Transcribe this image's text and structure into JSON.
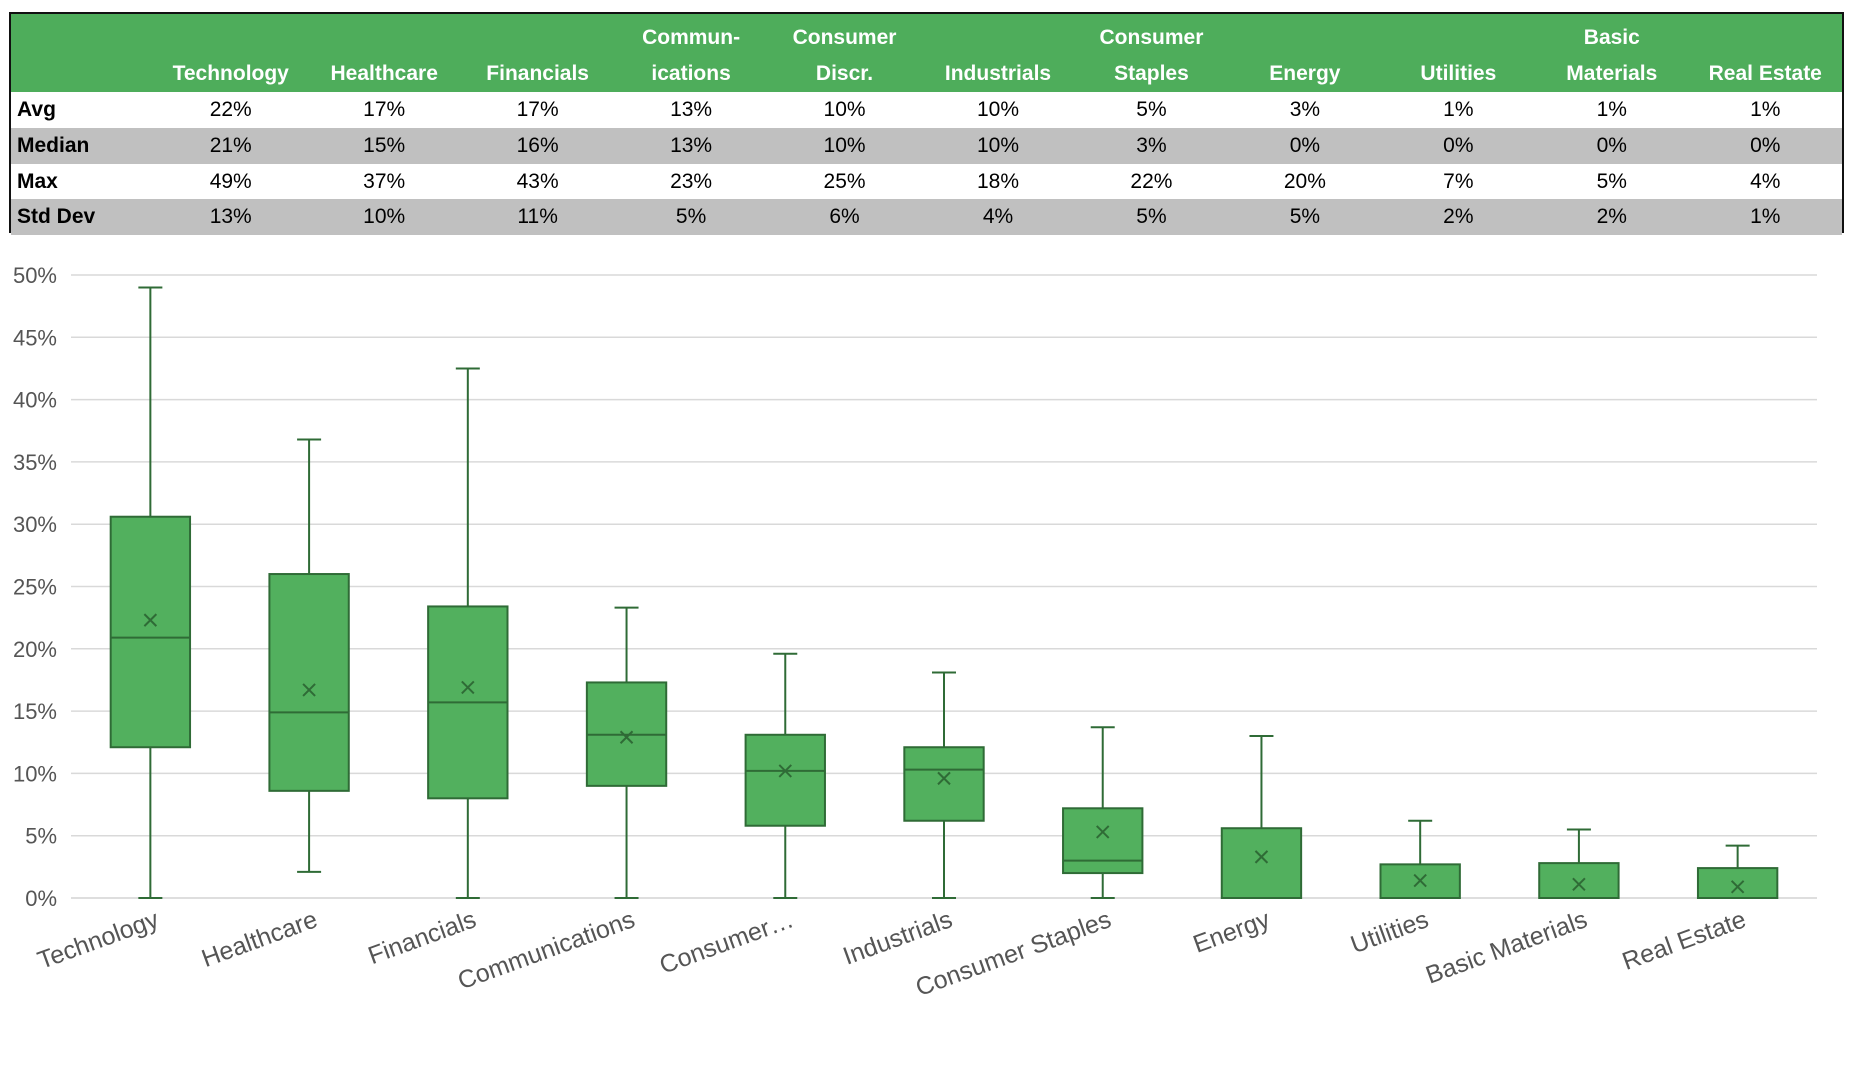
{
  "table": {
    "headers": [
      [
        "Technology"
      ],
      [
        "Healthcare"
      ],
      [
        "Financials"
      ],
      [
        "Commun-",
        "ications"
      ],
      [
        "Consumer",
        "Discr."
      ],
      [
        "Industrials"
      ],
      [
        "Consumer",
        "Staples"
      ],
      [
        "Energy"
      ],
      [
        "Utilities"
      ],
      [
        "Basic",
        "Materials"
      ],
      [
        "Real Estate"
      ]
    ],
    "rows": [
      {
        "label": "Avg",
        "cells": [
          "22%",
          "17%",
          "17%",
          "13%",
          "10%",
          "10%",
          "5%",
          "3%",
          "1%",
          "1%",
          "1%"
        ]
      },
      {
        "label": "Median",
        "cells": [
          "21%",
          "15%",
          "16%",
          "13%",
          "10%",
          "10%",
          "3%",
          "0%",
          "0%",
          "0%",
          "0%"
        ]
      },
      {
        "label": "Max",
        "cells": [
          "49%",
          "37%",
          "43%",
          "23%",
          "25%",
          "18%",
          "22%",
          "20%",
          "7%",
          "5%",
          "4%"
        ]
      },
      {
        "label": "Std Dev",
        "cells": [
          "13%",
          "10%",
          "11%",
          "5%",
          "6%",
          "4%",
          "5%",
          "5%",
          "2%",
          "2%",
          "1%"
        ]
      }
    ]
  },
  "chart_data": {
    "type": "box",
    "categories": [
      "Technology",
      "Healthcare",
      "Financials",
      "Communications",
      "Consumer…",
      "Industrials",
      "Consumer Staples",
      "Energy",
      "Utilities",
      "Basic Materials",
      "Real Estate"
    ],
    "min": [
      0,
      2.1,
      0,
      0,
      0,
      0,
      0,
      0,
      0,
      0,
      0
    ],
    "q1": [
      12.1,
      8.6,
      8.0,
      9.0,
      5.8,
      6.2,
      2.0,
      0,
      0,
      0,
      0
    ],
    "median": [
      20.9,
      14.9,
      15.7,
      13.1,
      10.2,
      10.3,
      3.0,
      0,
      0,
      0,
      0
    ],
    "q3": [
      30.6,
      26.0,
      23.4,
      17.3,
      13.1,
      12.1,
      7.2,
      5.6,
      2.7,
      2.8,
      2.4
    ],
    "max": [
      49.0,
      36.8,
      42.5,
      23.3,
      19.6,
      18.1,
      13.7,
      13.0,
      6.2,
      5.5,
      4.2
    ],
    "mean": [
      22.3,
      16.7,
      16.9,
      12.9,
      10.2,
      9.6,
      5.3,
      3.3,
      1.4,
      1.1,
      0.9
    ],
    "color": "#52b05e",
    "ylim": [
      0,
      50
    ],
    "yticks": [
      {
        "value": 0,
        "label": "0%"
      },
      {
        "value": 5,
        "label": "5%"
      },
      {
        "value": 10,
        "label": "10%"
      },
      {
        "value": 15,
        "label": "15%"
      },
      {
        "value": 20,
        "label": "20%"
      },
      {
        "value": 25,
        "label": "25%"
      },
      {
        "value": 30,
        "label": "30%"
      },
      {
        "value": 35,
        "label": "35%"
      },
      {
        "value": 40,
        "label": "40%"
      },
      {
        "value": 45,
        "label": "45%"
      },
      {
        "value": 50,
        "label": "50%"
      }
    ],
    "grid": true
  }
}
